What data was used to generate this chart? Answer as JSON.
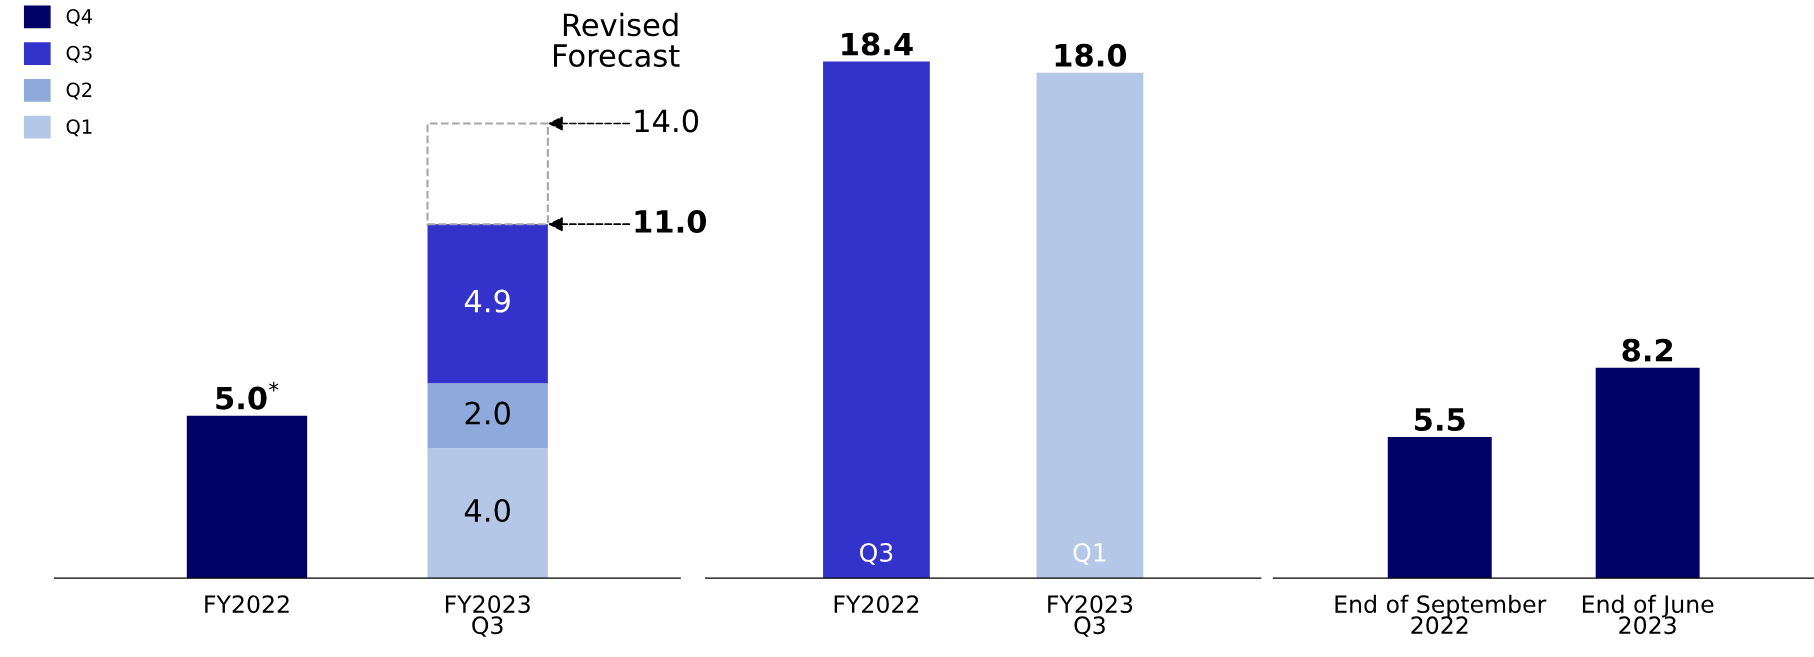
{
  "chart_data": [
    {
      "type": "bar",
      "stacked": true,
      "categories": [
        "FY2022",
        "FY2023\nQ3"
      ],
      "legend": "top left",
      "series": [
        {
          "name": "Q1",
          "color": "#b4c7e7",
          "values": [
            null,
            4.0
          ],
          "value_labels": [
            null,
            "4.0"
          ]
        },
        {
          "name": "Q2",
          "color": "#8eaadc",
          "values": [
            null,
            2.0
          ],
          "value_labels": [
            null,
            "2.0"
          ]
        },
        {
          "name": "Q3",
          "color": "#3333cc",
          "values": [
            null,
            4.9
          ],
          "value_labels": [
            null,
            "4.9"
          ]
        },
        {
          "name": "Q4",
          "color": "#000066",
          "values": [
            5.0,
            null
          ],
          "value_labels": [
            "5.0$^{*}$",
            null
          ]
        },
        {
          "type": "bar",
          "color": "#a6a6a6",
          "line_style": "dashed",
          "values": [
            null,
            3.1
          ]
        }
      ],
      "annotations": [
        "Revised\nForecast",
        "14.0",
        "11.0"
      ]
    },
    {
      "type": "bar",
      "categories": [
        "FY2022",
        "FY2023\nQ3"
      ],
      "values": [
        18.4,
        18.0
      ],
      "colors": [
        "#3333cc",
        "#b4c7e7"
      ],
      "value_labels": [
        "18.4",
        "18.0"
      ],
      "annotations": [
        "Q3",
        "Q1"
      ]
    },
    {
      "type": "bar",
      "categories": [
        "End of September\n2022",
        "End of June\n2023"
      ],
      "values": [
        5.5,
        8.2
      ],
      "color": "#000066",
      "value_labels": [
        "5.5",
        "8.2"
      ]
    }
  ]
}
